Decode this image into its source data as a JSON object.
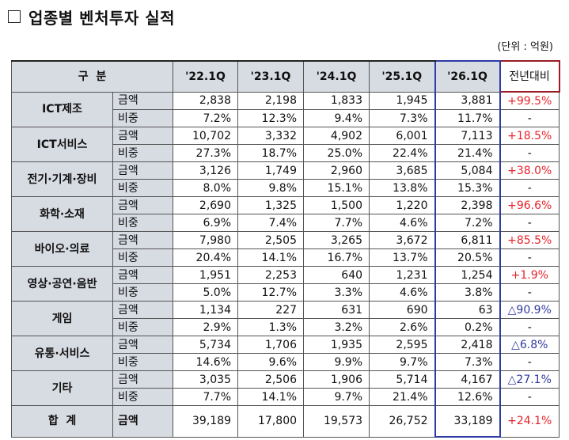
{
  "title": "업종별 벤처투자 실적",
  "unit": "(단위 : 억원)",
  "header": {
    "category": "구  분",
    "periods": [
      "'22.1Q",
      "'23.1Q",
      "'24.1Q",
      "'25.1Q",
      "'26.1Q"
    ],
    "change": "전년대비"
  },
  "labels": {
    "amount": "금액",
    "share": "비중"
  },
  "rows": [
    {
      "name": "ICT제조",
      "amount": [
        "2,838",
        "2,198",
        "1,833",
        "1,945",
        "3,881"
      ],
      "change": "+99.5%",
      "share": [
        "7.2%",
        "12.3%",
        "9.4%",
        "7.3%",
        "11.7%"
      ],
      "share_change": "-"
    },
    {
      "name": "ICT서비스",
      "amount": [
        "10,702",
        "3,332",
        "4,902",
        "6,001",
        "7,113"
      ],
      "change": "+18.5%",
      "share": [
        "27.3%",
        "18.7%",
        "25.0%",
        "22.4%",
        "21.4%"
      ],
      "share_change": "-"
    },
    {
      "name": "전기·기계·장비",
      "amount": [
        "3,126",
        "1,749",
        "2,960",
        "3,685",
        "5,084"
      ],
      "change": "+38.0%",
      "share": [
        "8.0%",
        "9.8%",
        "15.1%",
        "13.8%",
        "15.3%"
      ],
      "share_change": "-"
    },
    {
      "name": "화학·소재",
      "amount": [
        "2,690",
        "1,325",
        "1,500",
        "1,220",
        "2,398"
      ],
      "change": "+96.6%",
      "share": [
        "6.9%",
        "7.4%",
        "7.7%",
        "4.6%",
        "7.2%"
      ],
      "share_change": "-"
    },
    {
      "name": "바이오·의료",
      "amount": [
        "7,980",
        "2,505",
        "3,265",
        "3,672",
        "6,811"
      ],
      "change": "+85.5%",
      "share": [
        "20.4%",
        "14.1%",
        "16.7%",
        "13.7%",
        "20.5%"
      ],
      "share_change": "-"
    },
    {
      "name": "영상·공연·음반",
      "amount": [
        "1,951",
        "2,253",
        "640",
        "1,231",
        "1,254"
      ],
      "change": "+1.9%",
      "share": [
        "5.0%",
        "12.7%",
        "3.3%",
        "4.6%",
        "3.8%"
      ],
      "share_change": "-"
    },
    {
      "name": "게임",
      "amount": [
        "1,134",
        "227",
        "631",
        "690",
        "63"
      ],
      "change": "△90.9%",
      "share": [
        "2.9%",
        "1.3%",
        "3.2%",
        "2.6%",
        "0.2%"
      ],
      "share_change": "-"
    },
    {
      "name": "유통·서비스",
      "amount": [
        "5,734",
        "1,706",
        "1,935",
        "2,595",
        "2,418"
      ],
      "change": "△6.8%",
      "share": [
        "14.6%",
        "9.6%",
        "9.9%",
        "9.7%",
        "7.3%"
      ],
      "share_change": "-"
    },
    {
      "name": "기타",
      "amount": [
        "3,035",
        "2,506",
        "1,906",
        "5,714",
        "4,167"
      ],
      "change": "△27.1%",
      "share": [
        "7.7%",
        "14.1%",
        "9.7%",
        "21.4%",
        "12.6%"
      ],
      "share_change": "-"
    }
  ],
  "total": {
    "name": "합  계",
    "label": "금액",
    "amount": [
      "39,189",
      "17,800",
      "19,573",
      "26,752",
      "33,189"
    ],
    "change": "+24.1%"
  },
  "colors": {
    "increase": "#e8232a",
    "decrease": "#2f3a9e",
    "header_bg": "#d7dbe2",
    "highlight_border": "#2e3ca5",
    "change_header_border": "#9a1c24"
  }
}
